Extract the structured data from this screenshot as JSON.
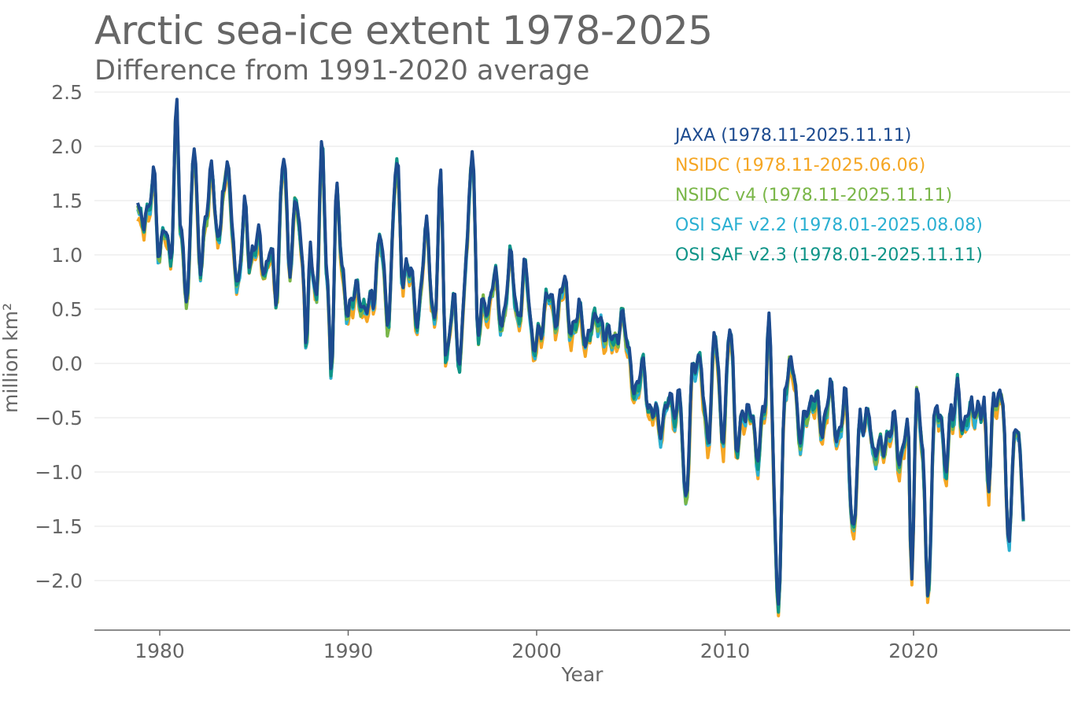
{
  "chart_data": {
    "type": "line",
    "title": "Arctic sea-ice extent 1978-2025",
    "subtitle": "Difference from 1991-2020 average",
    "xlabel": "Year",
    "ylabel": "million km²",
    "xlim": [
      1976.5,
      2026.5
    ],
    "ylim": [
      -2.45,
      2.5
    ],
    "x_ticks": [
      1980,
      1990,
      2000,
      2010,
      2020
    ],
    "x_tick_labels": [
      "1980",
      "1990",
      "2000",
      "2010",
      "2020"
    ],
    "y_ticks": [
      2.5,
      2.0,
      1.5,
      1.0,
      0.5,
      0.0,
      -0.5,
      -1.0,
      -1.5,
      -2.0
    ],
    "y_tick_labels": [
      "2.5",
      "2.0",
      "1.5",
      "1.0",
      "0.5",
      "0.0",
      "−0.5",
      "−1.0",
      "−1.5",
      "−2.0"
    ],
    "grid": true,
    "legend_position": "top-right",
    "base_anchors": [
      [
        1978.8,
        1.5
      ],
      [
        1979.0,
        1.45
      ],
      [
        1979.4,
        1.3
      ],
      [
        1979.7,
        1.8
      ],
      [
        1980.0,
        1.0
      ],
      [
        1980.3,
        1.2
      ],
      [
        1980.6,
        1.1
      ],
      [
        1980.9,
        2.3
      ],
      [
        1981.1,
        1.2
      ],
      [
        1981.5,
        0.7
      ],
      [
        1981.8,
        1.9
      ],
      [
        1982.2,
        1.0
      ],
      [
        1982.5,
        1.3
      ],
      [
        1982.8,
        1.9
      ],
      [
        1983.1,
        1.1
      ],
      [
        1983.4,
        1.5
      ],
      [
        1983.6,
        2.05
      ],
      [
        1983.9,
        1.1
      ],
      [
        1984.1,
        0.6
      ],
      [
        1984.5,
        1.55
      ],
      [
        1984.8,
        0.8
      ],
      [
        1985.2,
        1.3
      ],
      [
        1985.6,
        0.7
      ],
      [
        1985.9,
        1.2
      ],
      [
        1986.2,
        0.6
      ],
      [
        1986.6,
        2.0
      ],
      [
        1986.9,
        0.9
      ],
      [
        1987.3,
        1.5
      ],
      [
        1987.6,
        1.0
      ],
      [
        1987.8,
        0.05
      ],
      [
        1988.0,
        1.05
      ],
      [
        1988.3,
        0.7
      ],
      [
        1988.6,
        1.9
      ],
      [
        1988.9,
        0.8
      ],
      [
        1989.1,
        0.05
      ],
      [
        1989.4,
        1.5
      ],
      [
        1989.7,
        0.9
      ],
      [
        1990.1,
        0.4
      ],
      [
        1990.5,
        0.8
      ],
      [
        1990.9,
        0.4
      ],
      [
        1991.3,
        0.7
      ],
      [
        1991.7,
        1.1
      ],
      [
        1992.1,
        0.5
      ],
      [
        1992.6,
        1.8
      ],
      [
        1992.9,
        0.9
      ],
      [
        1993.3,
        0.8
      ],
      [
        1993.7,
        0.5
      ],
      [
        1994.2,
        1.2
      ],
      [
        1994.6,
        0.4
      ],
      [
        1994.9,
        1.65
      ],
      [
        1995.2,
        0.15
      ],
      [
        1995.6,
        0.5
      ],
      [
        1995.9,
        0.1
      ],
      [
        1996.3,
        1.0
      ],
      [
        1996.6,
        2.05
      ],
      [
        1996.9,
        0.3
      ],
      [
        1997.3,
        0.5
      ],
      [
        1997.7,
        0.8
      ],
      [
        1998.1,
        0.4
      ],
      [
        1998.6,
        0.9
      ],
      [
        1999.0,
        0.5
      ],
      [
        1999.4,
        0.8
      ],
      [
        1999.8,
        0.3
      ],
      [
        2000.2,
        0.2
      ],
      [
        2000.6,
        0.8
      ],
      [
        2001.0,
        0.3
      ],
      [
        2001.4,
        0.9
      ],
      [
        2001.8,
        0.2
      ],
      [
        2002.2,
        0.6
      ],
      [
        2002.6,
        0.1
      ],
      [
        2002.9,
        0.5
      ],
      [
        2003.3,
        0.3
      ],
      [
        2003.7,
        0.4
      ],
      [
        2004.1,
        0.1
      ],
      [
        2004.5,
        0.55
      ],
      [
        2004.9,
        0.0
      ],
      [
        2005.3,
        -0.2
      ],
      [
        2005.7,
        -0.1
      ],
      [
        2006.1,
        -0.4
      ],
      [
        2006.5,
        -0.6
      ],
      [
        2006.9,
        -0.3
      ],
      [
        2007.2,
        -0.5
      ],
      [
        2007.6,
        -0.2
      ],
      [
        2007.9,
        -1.4
      ],
      [
        2008.3,
        0.1
      ],
      [
        2008.7,
        -0.1
      ],
      [
        2009.1,
        -0.6
      ],
      [
        2009.5,
        0.2
      ],
      [
        2009.9,
        -0.6
      ],
      [
        2010.3,
        0.3
      ],
      [
        2010.6,
        -0.65
      ],
      [
        2011.0,
        -0.55
      ],
      [
        2011.4,
        -0.3
      ],
      [
        2011.7,
        -1.0
      ],
      [
        2012.1,
        -0.3
      ],
      [
        2012.3,
        0.35
      ],
      [
        2012.8,
        -2.1
      ],
      [
        2013.2,
        -0.3
      ],
      [
        2013.6,
        0.1
      ],
      [
        2014.0,
        -0.8
      ],
      [
        2014.4,
        -0.3
      ],
      [
        2014.8,
        -0.4
      ],
      [
        2015.2,
        -0.5
      ],
      [
        2015.6,
        -0.3
      ],
      [
        2016.0,
        -0.6
      ],
      [
        2016.4,
        -0.4
      ],
      [
        2016.8,
        -1.45
      ],
      [
        2017.2,
        -0.6
      ],
      [
        2017.6,
        -0.35
      ],
      [
        2017.9,
        -1.0
      ],
      [
        2018.2,
        -0.6
      ],
      [
        2018.6,
        -0.8
      ],
      [
        2019.0,
        -0.4
      ],
      [
        2019.3,
        -1.0
      ],
      [
        2019.7,
        -0.5
      ],
      [
        2019.9,
        -1.8
      ],
      [
        2020.2,
        -0.3
      ],
      [
        2020.5,
        -0.8
      ],
      [
        2020.8,
        -2.2
      ],
      [
        2021.1,
        -0.5
      ],
      [
        2021.4,
        -0.3
      ],
      [
        2021.7,
        -1.1
      ],
      [
        2022.0,
        -0.4
      ],
      [
        2022.3,
        -0.2
      ],
      [
        2022.6,
        -0.7
      ],
      [
        2022.9,
        -0.3
      ],
      [
        2023.3,
        -0.55
      ],
      [
        2023.7,
        -0.25
      ],
      [
        2024.0,
        -1.2
      ],
      [
        2024.3,
        -0.2
      ],
      [
        2024.7,
        -0.3
      ],
      [
        2025.0,
        -1.55
      ],
      [
        2025.4,
        -0.6
      ],
      [
        2025.9,
        -1.3
      ]
    ],
    "series": [
      {
        "name": "NSIDC (1978.11-2025.06.06)",
        "color": "#F5A623",
        "end": 2025.45,
        "offset_scale": -0.08,
        "seed": 3
      },
      {
        "name": "OSI SAF v2.2 (1978.01-2025.08.08)",
        "color": "#2BB0D2",
        "end": 2025.6,
        "offset_scale": -0.05,
        "seed": 7
      },
      {
        "name": "NSIDC v4 (1978.11-2025.11.11)",
        "color": "#7AB648",
        "end": 2025.86,
        "offset_scale": -0.03,
        "seed": 11
      },
      {
        "name": "OSI SAF v2.3 (1978.01-2025.11.11)",
        "color": "#0F9488",
        "end": 2025.86,
        "offset_scale": -0.02,
        "seed": 13
      },
      {
        "name": "JAXA (1978.11-2025.11.11)",
        "color": "#1D4B8F",
        "end": 2025.86,
        "offset_scale": 0.0,
        "seed": 17
      }
    ],
    "legend_order": [
      {
        "label": "JAXA (1978.11-2025.11.11)",
        "color": "#1D4B8F"
      },
      {
        "label": "NSIDC (1978.11-2025.06.06)",
        "color": "#F5A623"
      },
      {
        "label": "NSIDC v4 (1978.11-2025.11.11)",
        "color": "#7AB648"
      },
      {
        "label": "OSI SAF v2.2 (1978.01-2025.08.08)",
        "color": "#2BB0D2"
      },
      {
        "label": "OSI SAF v2.3 (1978.01-2025.11.11)",
        "color": "#0F9488"
      }
    ]
  }
}
